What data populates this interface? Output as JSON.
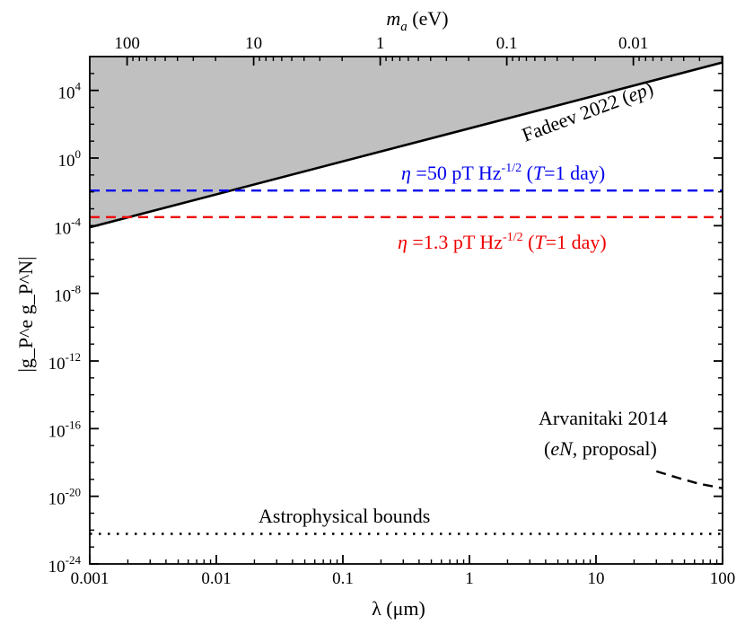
{
  "chart_data": {
    "type": "line",
    "x_axis": {
      "label": "λ (μm)",
      "scale": "log",
      "range": [
        0.001,
        100
      ],
      "ticks": [
        "0.001",
        "0.01",
        "0.1",
        "1",
        "10",
        "100"
      ]
    },
    "x2_axis": {
      "label_symbol": "m",
      "label_subscript": "a",
      "label_unit": " (eV)",
      "scale": "log",
      "range_eV": [
        197.3,
        0.001973
      ],
      "ticks": [
        "100",
        "10",
        "1",
        "0.1",
        "0.01"
      ]
    },
    "y_axis": {
      "label": "|g_P^e g_P^N|",
      "scale": "log",
      "range": [
        1e-24,
        1000000.0
      ],
      "tick_exponents": [
        "4",
        "0",
        "-4",
        "-8",
        "-12",
        "-16",
        "-20",
        "-24"
      ],
      "tick_base": "10"
    },
    "series": [
      {
        "key": "fadeev",
        "style": "solid",
        "color": "#000000",
        "fill_above": "#c0c0c0",
        "x": [
          0.001,
          100
        ],
        "y": [
          8e-05,
          450000.0
        ],
        "label_main": "Fadeev 2022 (",
        "label_italic": "ep",
        "label_end": ")"
      },
      {
        "key": "eta50",
        "style": "dashed",
        "color": "#0000ee",
        "x": [
          0.001,
          100
        ],
        "y": [
          0.012,
          0.012
        ],
        "label_eta": "η",
        "label_a": " =50 pT Hz",
        "label_exp": "-1/2",
        "label_b": " (",
        "label_T": "T",
        "label_c": "=1 day)"
      },
      {
        "key": "eta13",
        "style": "dashed",
        "color": "#ee0000",
        "x": [
          0.001,
          100
        ],
        "y": [
          0.00032,
          0.00032
        ],
        "label_eta": "η",
        "label_a": " =1.3 pT Hz",
        "label_exp": "-1/2",
        "label_b": " (",
        "label_T": "T",
        "label_c": "=1 day)"
      },
      {
        "key": "arvanitaki",
        "style": "dashed",
        "color": "#000000",
        "x": [
          30,
          45,
          65,
          100
        ],
        "y": [
          3e-19,
          1.2e-19,
          5.5e-20,
          3e-20
        ],
        "label_line1": "Arvanitaki 2014",
        "label_open": "(",
        "label_italic": "eN",
        "label_line2": ", proposal)"
      },
      {
        "key": "astro",
        "style": "dotted",
        "color": "#000000",
        "x": [
          0.001,
          100
        ],
        "y": [
          6e-23,
          6e-23
        ],
        "label": "Astrophysical bounds"
      }
    ]
  }
}
